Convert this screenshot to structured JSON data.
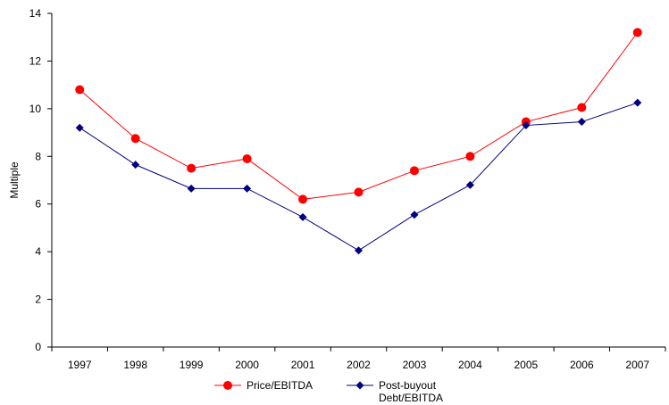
{
  "chart_data": {
    "type": "line",
    "title": "",
    "xlabel": "",
    "ylabel": "Multiple",
    "ylim": [
      0,
      14
    ],
    "yticks": [
      0,
      2,
      4,
      6,
      8,
      10,
      12,
      14
    ],
    "grid": false,
    "legend_position": "bottom",
    "categories": [
      "1997",
      "1998",
      "1999",
      "2000",
      "2001",
      "2002",
      "2003",
      "2004",
      "2005",
      "2006",
      "2007"
    ],
    "series": [
      {
        "name": "Price/EBITDA",
        "color": "#ff0000",
        "marker": "circle",
        "values": [
          10.8,
          8.75,
          7.5,
          7.9,
          6.2,
          6.5,
          7.4,
          8.0,
          9.45,
          10.05,
          13.2
        ]
      },
      {
        "name": "Post-buyout Debt/EBITDA",
        "legend_lines": [
          "Post-buyout",
          "Debt/EBITDA"
        ],
        "color": "#000080",
        "marker": "diamond",
        "values": [
          9.2,
          7.65,
          6.65,
          6.65,
          5.45,
          4.05,
          5.55,
          6.8,
          9.3,
          9.45,
          10.25
        ]
      }
    ]
  }
}
